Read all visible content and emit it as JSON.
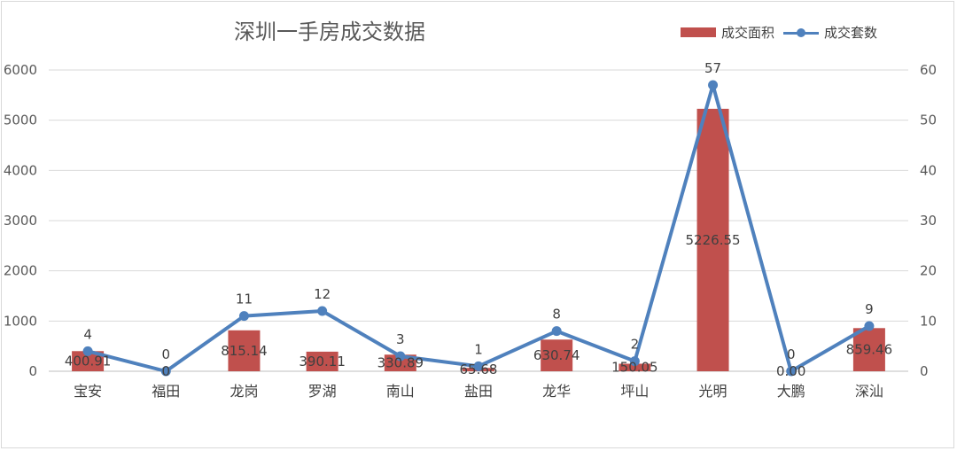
{
  "chart_data": {
    "type": "bar",
    "title": "深圳一手房成交数据",
    "categories": [
      "宝安",
      "福田",
      "龙岗",
      "罗湖",
      "南山",
      "盐田",
      "龙华",
      "坪山",
      "光明",
      "大鹏",
      "深汕"
    ],
    "series": [
      {
        "name": "成交面积",
        "type": "bar",
        "axis": "left",
        "color": "#c0504d",
        "values": [
          400.91,
          0,
          815.14,
          390.11,
          330.89,
          65.68,
          630.74,
          150.05,
          5226.55,
          0,
          859.46
        ],
        "labels": [
          "400.91",
          "0",
          "815.14",
          "390.11",
          "330.89",
          "65.68",
          "630.74",
          "150.05",
          "5226.55",
          "0.00",
          "859.46"
        ]
      },
      {
        "name": "成交套数",
        "type": "line",
        "axis": "right",
        "color": "#4f81bd",
        "values": [
          4,
          0,
          11,
          12,
          3,
          1,
          8,
          2,
          57,
          0,
          9
        ],
        "labels": [
          "4",
          "0",
          "11",
          "12",
          "3",
          "1",
          "8",
          "2",
          "57",
          "0",
          "9"
        ]
      }
    ],
    "y_left": {
      "range": [
        0,
        6000
      ],
      "ticks": [
        "0",
        "1000",
        "2000",
        "3000",
        "4000",
        "5000",
        "6000"
      ]
    },
    "y_right": {
      "range": [
        0,
        60
      ],
      "ticks": [
        "0",
        "10",
        "20",
        "30",
        "40",
        "50",
        "60"
      ]
    },
    "grid": true,
    "legend_position": "top-right"
  }
}
